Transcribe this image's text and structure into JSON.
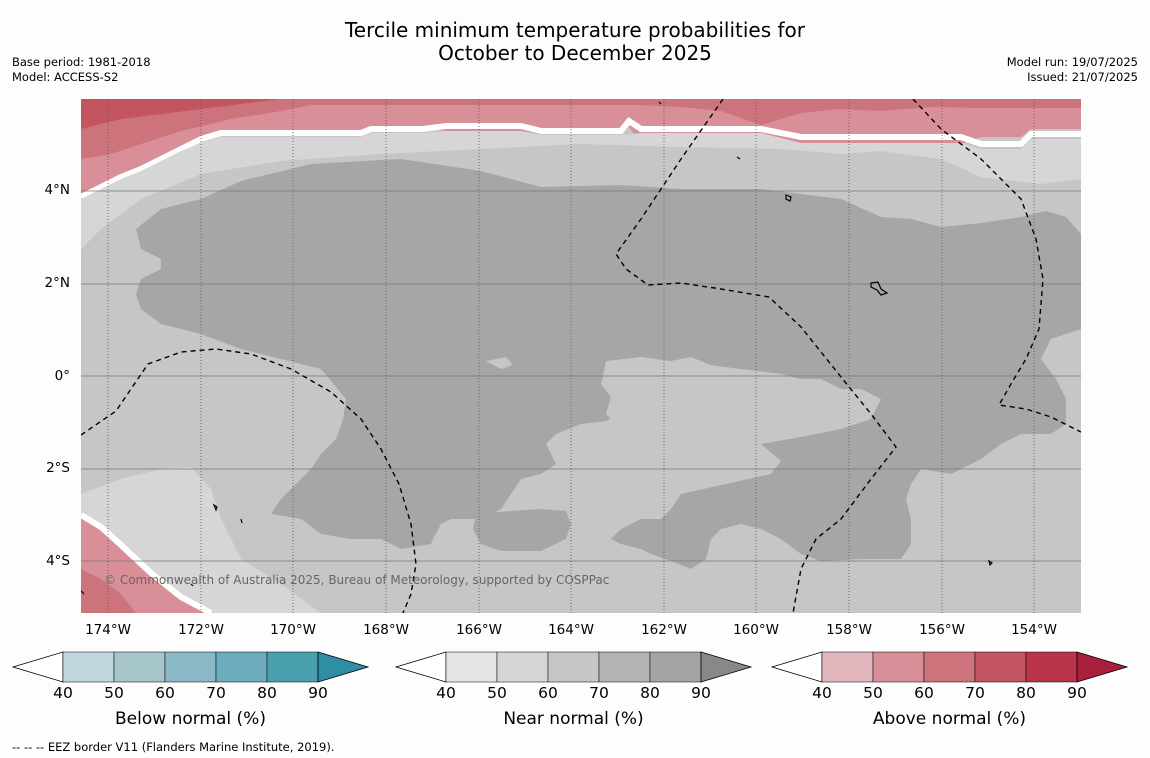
{
  "title_line1": "Tercile minimum temperature probabilities for",
  "title_line2": "October to December 2025",
  "meta_left": [
    "Base period: 1981-2018",
    "Model: ACCESS-S2"
  ],
  "meta_right": [
    "Model run: 19/07/2025",
    "Issued: 21/07/2025"
  ],
  "copyright": "© Commonwealth of Australia 2025, Bureau of Meteorology, supported by COSPPac",
  "lat_labels": [
    "4°N",
    "2°N",
    "0°",
    "2°S",
    "4°S"
  ],
  "lon_labels": [
    "174°W",
    "172°W",
    "170°W",
    "168°W",
    "166°W",
    "164°W",
    "162°W",
    "160°W",
    "158°W",
    "156°W",
    "154°W"
  ],
  "colorbars": [
    {
      "title": "Below normal (%)",
      "ticks": [
        "40",
        "50",
        "60",
        "70",
        "80",
        "90"
      ],
      "colors": [
        "#ffffff",
        "#bfd7de",
        "#a6c6cc",
        "#8bb8c6",
        "#6dadbd",
        "#4a9faf",
        "#2f8ea5"
      ]
    },
    {
      "title": "Near normal (%)",
      "ticks": [
        "40",
        "50",
        "60",
        "70",
        "80",
        "90"
      ],
      "colors": [
        "#ffffff",
        "#e4e4e4",
        "#d6d6d6",
        "#c6c6c6",
        "#b4b4b4",
        "#a4a4a4",
        "#888888"
      ]
    },
    {
      "title": "Above normal (%)",
      "ticks": [
        "40",
        "50",
        "60",
        "70",
        "80",
        "90"
      ],
      "colors": [
        "#ffffff",
        "#e2b6bd",
        "#d88f97",
        "#cc737c",
        "#c2555f",
        "#b8354a",
        "#a8203c"
      ]
    }
  ],
  "map_colors": {
    "near_50": "#d6d6d6",
    "near_60": "#c6c6c6",
    "near_70": "#c6c6c6",
    "near_80": "#a6a6a6",
    "above_50": "#d88f97",
    "above_60": "#cc737c",
    "above_70": "#c2555f"
  },
  "footer": "--  --  -- EEZ border V11 (Flanders Marine Institute, 2019)."
}
